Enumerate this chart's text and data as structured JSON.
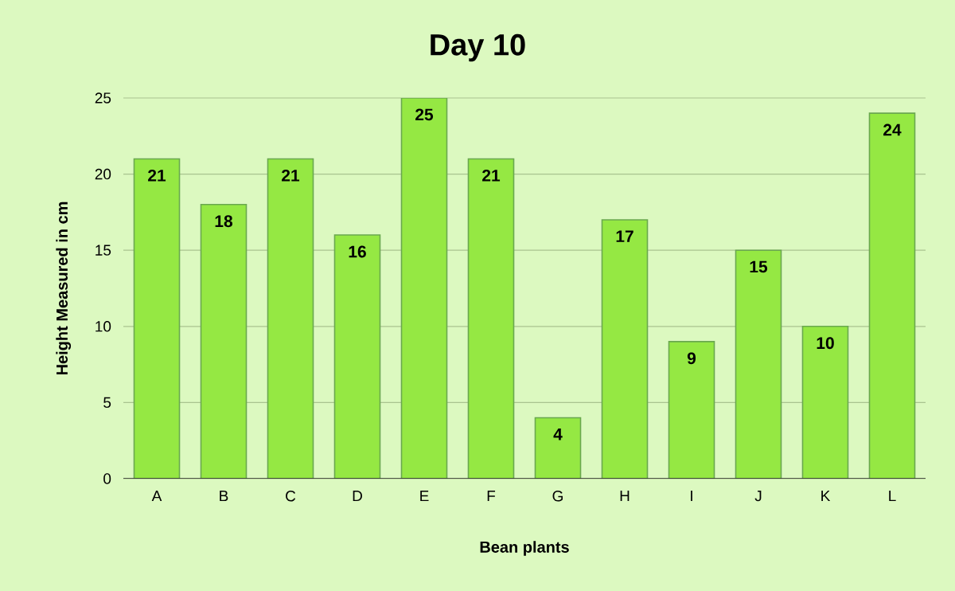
{
  "chart_data": {
    "type": "bar",
    "title": "Day 10",
    "xlabel": "Bean plants",
    "ylabel": "Height Measured in cm",
    "categories": [
      "A",
      "B",
      "C",
      "D",
      "E",
      "F",
      "G",
      "H",
      "I",
      "J",
      "K",
      "L"
    ],
    "values": [
      21,
      18,
      21,
      16,
      25,
      21,
      4,
      17,
      9,
      15,
      10,
      24
    ],
    "color": "#95e843",
    "ylim": [
      0,
      25
    ],
    "yticks": [
      0,
      5,
      10,
      15,
      20,
      25
    ],
    "grid": "y",
    "data_labels": true
  }
}
